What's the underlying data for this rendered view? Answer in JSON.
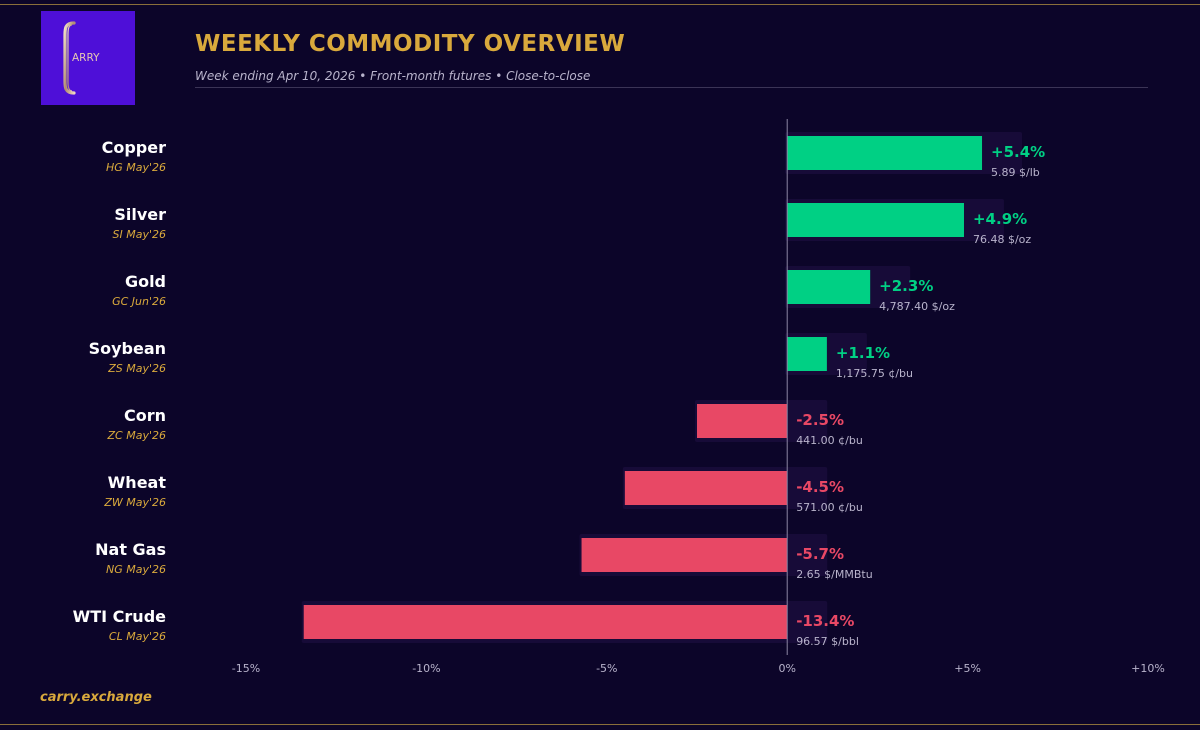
{
  "brand": {
    "logo_text": "ARRY",
    "footer": "carry.exchange"
  },
  "header": {
    "title": "WEEKLY COMMODITY OVERVIEW",
    "subtitle": "Week ending Apr 10, 2026  •  Front-month futures  •  Close-to-close"
  },
  "colors": {
    "positive": "#00d084",
    "negative": "#e84865",
    "accent": "#d9a93c",
    "label": "#ffffff",
    "sublabel": "#d9a93c",
    "price": "#b9b4cc",
    "background": "#0c0529"
  },
  "chart_data": {
    "type": "bar",
    "orientation": "horizontal",
    "title": "WEEKLY COMMODITY OVERVIEW",
    "xlabel": "",
    "ylabel": "",
    "xlim": [
      -15,
      10
    ],
    "xticks": [
      -15,
      -10,
      -5,
      0,
      5,
      10
    ],
    "xtick_labels": [
      "-15%",
      "-10%",
      "-5%",
      "0%",
      "+5%",
      "+10%"
    ],
    "grid": false,
    "categories": [
      "Copper",
      "Silver",
      "Gold",
      "Soybean",
      "Corn",
      "Wheat",
      "Nat Gas",
      "WTI Crude"
    ],
    "contracts": [
      "HG May'26",
      "SI May'26",
      "GC Jun'26",
      "ZS May'26",
      "ZC May'26",
      "ZW May'26",
      "NG May'26",
      "CL May'26"
    ],
    "values": [
      5.4,
      4.9,
      2.3,
      1.1,
      -2.5,
      -4.5,
      -5.7,
      -13.4
    ],
    "value_labels": [
      "+5.4%",
      "+4.9%",
      "+2.3%",
      "+1.1%",
      "-2.5%",
      "-4.5%",
      "-5.7%",
      "-13.4%"
    ],
    "prices": [
      "5.89 $/lb",
      "76.48 $/oz",
      "4,787.40 $/oz",
      "1,175.75 ¢/bu",
      "441.00 ¢/bu",
      "571.00 ¢/bu",
      "2.65 $/MMBtu",
      "96.57 $/bbl"
    ]
  }
}
